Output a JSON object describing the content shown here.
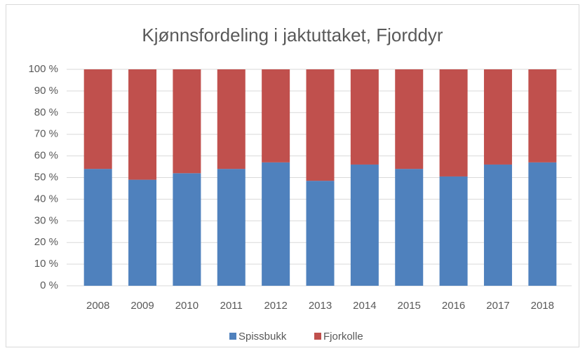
{
  "chart_data": {
    "type": "stacked_bar",
    "title": "Kjønnsfordeling i jaktuttaket, Fjorddyr",
    "categories": [
      "2008",
      "2009",
      "2010",
      "2011",
      "2012",
      "2013",
      "2014",
      "2015",
      "2016",
      "2017",
      "2018"
    ],
    "series": [
      {
        "name": "Spissbukk",
        "color": "#4f81bd",
        "values": [
          54,
          49,
          52,
          54,
          57,
          48.5,
          56,
          54,
          50.5,
          56,
          57
        ]
      },
      {
        "name": "Fjorkolle",
        "color": "#c0504d",
        "values": [
          46,
          51,
          48,
          46,
          43,
          51.5,
          44,
          46,
          49.5,
          44,
          43
        ]
      }
    ],
    "ylim": [
      0,
      100
    ],
    "yticks": [
      {
        "value": 0,
        "label": "0 %"
      },
      {
        "value": 10,
        "label": "10 %"
      },
      {
        "value": 20,
        "label": "20 %"
      },
      {
        "value": 30,
        "label": "30 %"
      },
      {
        "value": 40,
        "label": "40 %"
      },
      {
        "value": 50,
        "label": "50 %"
      },
      {
        "value": 60,
        "label": "60 %"
      },
      {
        "value": 70,
        "label": "70 %"
      },
      {
        "value": 80,
        "label": "80 %"
      },
      {
        "value": 90,
        "label": "90 %"
      },
      {
        "value": 100,
        "label": "100 %"
      }
    ],
    "grid": true,
    "legend": "bottom"
  }
}
